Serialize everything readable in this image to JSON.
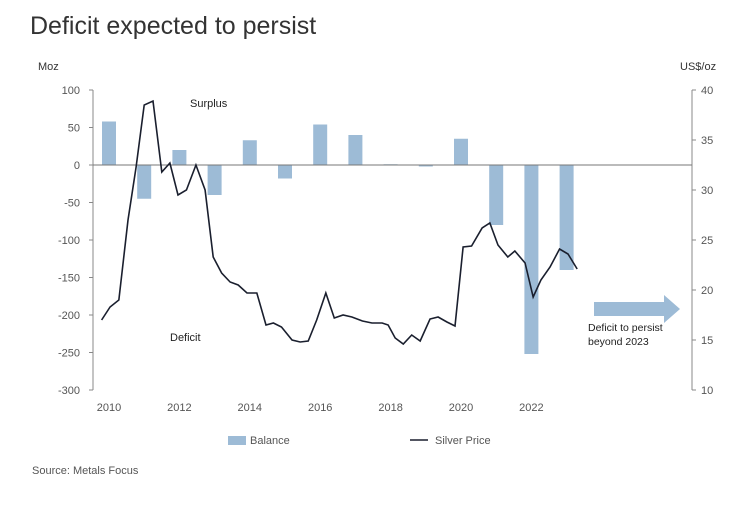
{
  "chart_data": {
    "type": "bar+line",
    "title": "Deficit expected to persist",
    "ylabel_left": "Moz",
    "ylabel_right": "US$/oz",
    "ylim_left": [
      -300,
      100
    ],
    "ylim_right": [
      10,
      40
    ],
    "xlim": [
      2009.6,
      2024.3
    ],
    "yticks_left": [
      100,
      50,
      0,
      -50,
      -100,
      -150,
      -200,
      -250,
      -300
    ],
    "yticks_right": [
      40,
      35,
      30,
      25,
      20,
      15,
      10
    ],
    "xticks": [
      2010,
      2012,
      2014,
      2016,
      2018,
      2020,
      2022
    ],
    "grid": false,
    "legend": "bottom",
    "series": [
      {
        "name": "Balance",
        "type": "bar",
        "axis": "left",
        "color": "#9dbbd6",
        "x": [
          2010,
          2011,
          2012,
          2013,
          2014,
          2015,
          2016,
          2017,
          2018,
          2019,
          2020,
          2021,
          2022,
          2023
        ],
        "values": [
          58,
          -45,
          20,
          -40,
          33,
          -18,
          54,
          40,
          1,
          -2,
          35,
          -80,
          -252,
          -140
        ]
      },
      {
        "name": "Silver Price",
        "type": "line",
        "axis": "right",
        "color": "#1a1f2e",
        "x": [
          2009.79,
          2010.03,
          2010.28,
          2010.54,
          2010.77,
          2011.0,
          2011.25,
          2011.5,
          2011.73,
          2011.96,
          2012.2,
          2012.47,
          2012.73,
          2012.96,
          2013.2,
          2013.44,
          2013.67,
          2013.92,
          2014.2,
          2014.46,
          2014.67,
          2014.9,
          2015.2,
          2015.43,
          2015.66,
          2015.9,
          2016.16,
          2016.4,
          2016.65,
          2016.9,
          2017.2,
          2017.47,
          2017.76,
          2017.93,
          2018.13,
          2018.36,
          2018.6,
          2018.84,
          2019.12,
          2019.35,
          2019.6,
          2019.83,
          2020.06,
          2020.3,
          2020.6,
          2020.82,
          2021.05,
          2021.33,
          2021.53,
          2021.82,
          2022.05,
          2022.27,
          2022.53,
          2022.8,
          2023.04,
          2023.3
        ],
        "values": [
          17.0,
          18.3,
          19.0,
          27.0,
          32.3,
          38.5,
          38.9,
          31.8,
          32.7,
          29.5,
          30.0,
          32.5,
          30.0,
          23.3,
          21.7,
          20.8,
          20.5,
          19.7,
          19.7,
          16.5,
          16.7,
          16.3,
          15.0,
          14.8,
          14.9,
          17.0,
          19.7,
          17.2,
          17.5,
          17.3,
          16.9,
          16.7,
          16.7,
          16.5,
          15.2,
          14.6,
          15.5,
          14.9,
          17.1,
          17.3,
          16.8,
          16.4,
          24.3,
          24.4,
          26.2,
          26.7,
          24.5,
          23.3,
          23.9,
          22.7,
          19.3,
          21.0,
          22.3,
          24.1,
          23.6,
          22.1
        ]
      }
    ],
    "annotations": {
      "surplus": "Surplus",
      "deficit": "Deficit",
      "arrow_text_1": "Deficit to persist",
      "arrow_text_2": "beyond 2023"
    }
  },
  "source": "Source: Metals Focus"
}
